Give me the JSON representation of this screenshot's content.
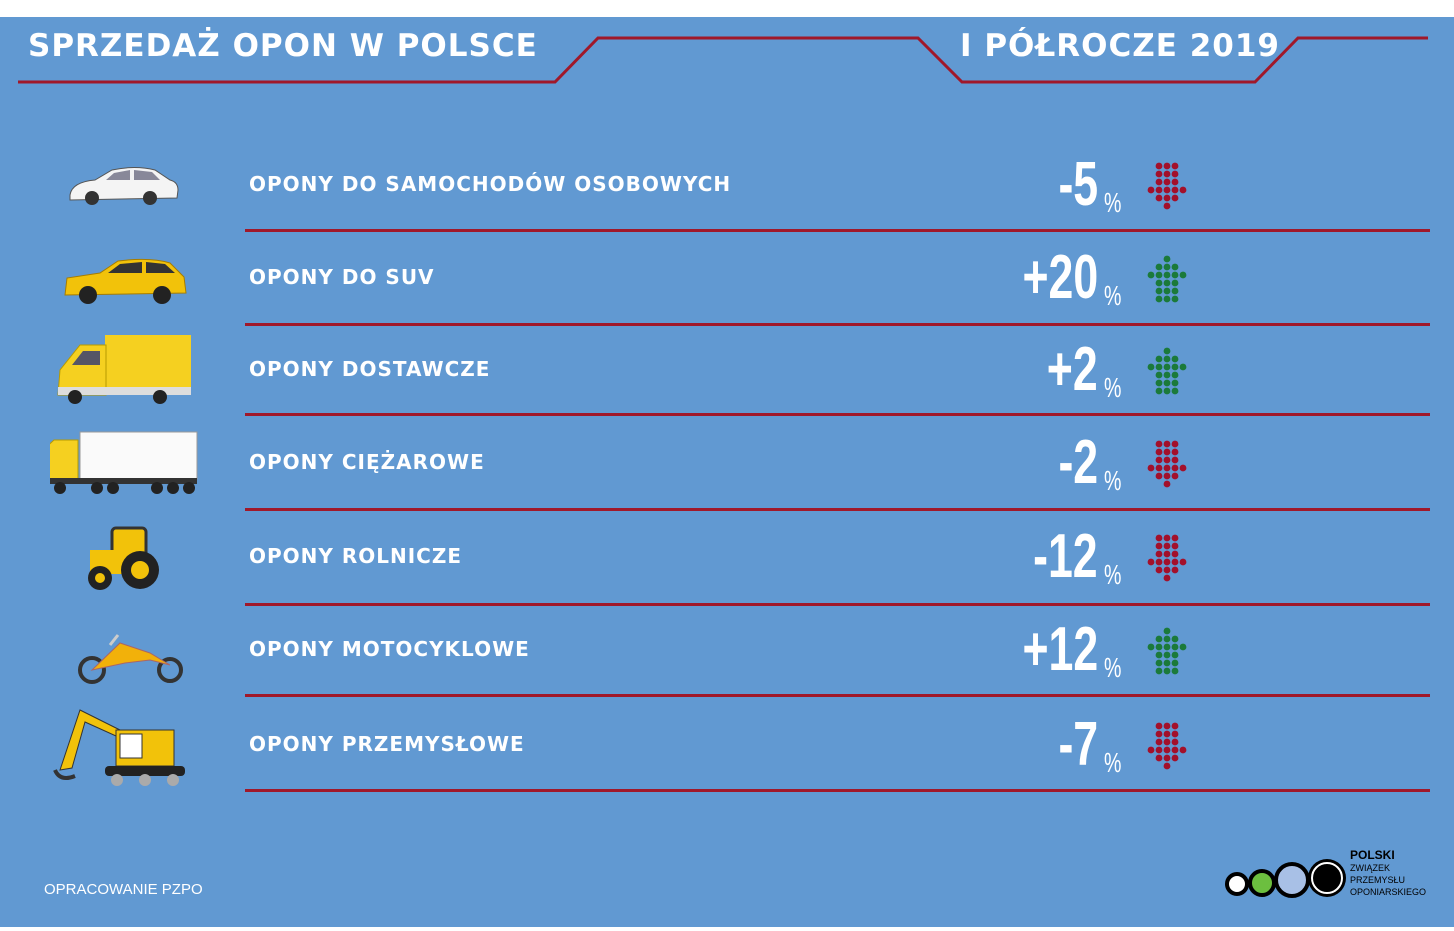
{
  "header": {
    "title": "SPRZEDAŻ OPON W POLSCE",
    "period": "I PÓŁROCZE 2019"
  },
  "colors": {
    "background": "#6199d2",
    "accent": "#a0182a",
    "up": "#1b7a3a",
    "down": "#a3102b"
  },
  "rows": [
    {
      "label": "OPONY DO SAMOCHODÓW OSOBOWYCH",
      "value": "-5",
      "unit": "%",
      "direction": "down",
      "icon": "car-icon"
    },
    {
      "label": "OPONY DO SUV",
      "value": "+20",
      "unit": "%",
      "direction": "up",
      "icon": "suv-icon"
    },
    {
      "label": "OPONY DOSTAWCZE",
      "value": "+2",
      "unit": "%",
      "direction": "up",
      "icon": "van-icon"
    },
    {
      "label": "OPONY CIĘŻAROWE",
      "value": "-2",
      "unit": "%",
      "direction": "down",
      "icon": "truck-icon"
    },
    {
      "label": "OPONY ROLNICZE",
      "value": "-12",
      "unit": "%",
      "direction": "down",
      "icon": "tractor-icon"
    },
    {
      "label": "OPONY MOTOCYKLOWE",
      "value": "+12",
      "unit": "%",
      "direction": "up",
      "icon": "motorcycle-icon"
    },
    {
      "label": "OPONY PRZEMYSŁOWE",
      "value": "-7",
      "unit": "%",
      "direction": "down",
      "icon": "excavator-icon"
    }
  ],
  "footer": {
    "credit": "OPRACOWANIE PZPO",
    "logo_lines": [
      "POLSKI",
      "ZWIĄZEK",
      "PRZEMYSŁU",
      "OPONIARSKIEGO"
    ]
  }
}
